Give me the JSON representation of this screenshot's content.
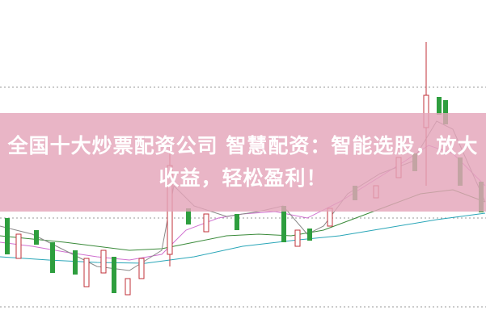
{
  "banner": {
    "title": "全国十大炒票配资公司 智慧配资：智能选股，放大收益，轻松盈利！"
  }
}
